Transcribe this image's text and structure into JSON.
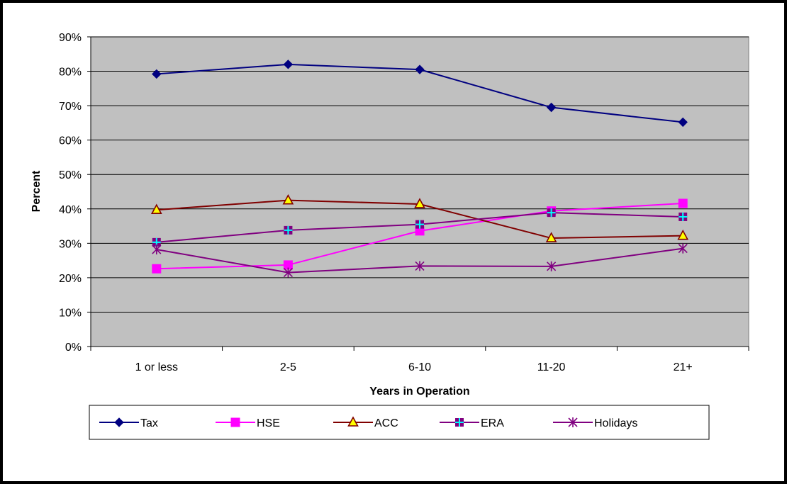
{
  "chart_data": {
    "type": "line",
    "title": "",
    "xlabel": "Years in Operation",
    "ylabel": "Percent",
    "categories": [
      "1 or less",
      "2-5",
      "6-10",
      "11-20",
      "21+"
    ],
    "ylim": [
      0,
      90
    ],
    "y_ticks": [
      "0%",
      "10%",
      "20%",
      "30%",
      "40%",
      "50%",
      "60%",
      "70%",
      "80%",
      "90%"
    ],
    "grid": "horizontal",
    "legend_position": "bottom",
    "plot_background": "#c0c0c0",
    "series": [
      {
        "name": "Tax",
        "values": [
          79.2,
          82.0,
          80.5,
          69.5,
          65.2
        ],
        "color": "#000080",
        "marker": "diamond"
      },
      {
        "name": "HSE",
        "values": [
          22.6,
          23.7,
          33.6,
          39.4,
          41.6
        ],
        "color": "#ff00ff",
        "marker": "square"
      },
      {
        "name": "ACC",
        "values": [
          39.7,
          42.5,
          41.4,
          31.5,
          32.2
        ],
        "color": "#800000",
        "marker": "triangle"
      },
      {
        "name": "ERA",
        "values": [
          30.3,
          33.8,
          35.5,
          38.9,
          37.7
        ],
        "color": "#800080",
        "marker": "plus-square"
      },
      {
        "name": "Holidays",
        "values": [
          28.2,
          21.5,
          23.4,
          23.3,
          28.5
        ],
        "color": "#800080",
        "marker": "asterisk"
      }
    ]
  }
}
